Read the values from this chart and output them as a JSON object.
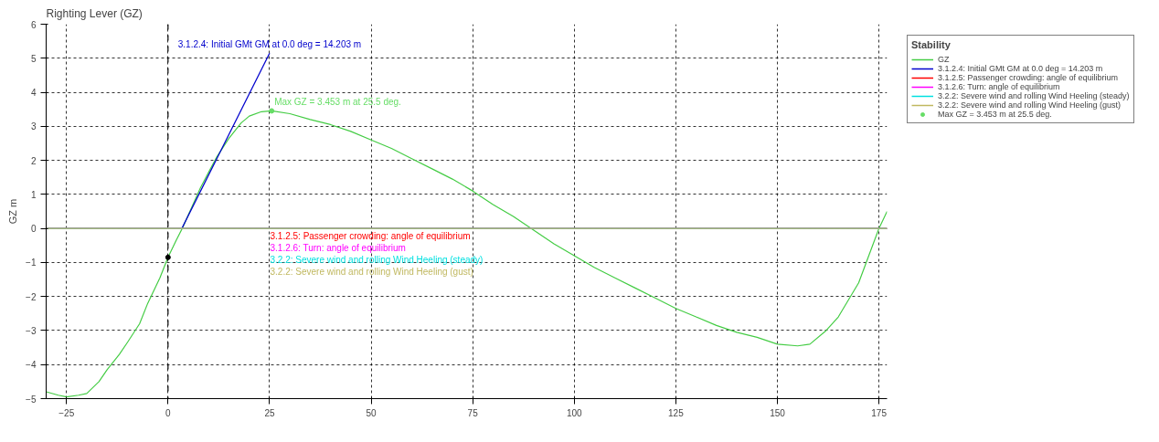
{
  "chart_data": {
    "type": "line",
    "title": "Righting Lever (GZ)",
    "ylabel": "GZ m",
    "legend_title": "Stability",
    "legend": "right",
    "grid": true,
    "xlim": [
      -30,
      177
    ],
    "xticks": [
      -25,
      0,
      25,
      50,
      75,
      100,
      125,
      150,
      175
    ],
    "ylim": [
      -5,
      6
    ],
    "yticks": [
      -5,
      -4,
      -3,
      -2,
      -1,
      0,
      1,
      2,
      3,
      4,
      5,
      6
    ],
    "series": [
      {
        "name": "GZ",
        "color": "#44cc44",
        "x": [
          -30,
          -27,
          -25,
          -22,
          -20,
          -17,
          -15,
          -12,
          -10,
          -7,
          -5,
          -2,
          0,
          2,
          3.5,
          5,
          8,
          10,
          12,
          15,
          18,
          20,
          23,
          25.5,
          30,
          35,
          40,
          45,
          50,
          55,
          60,
          65,
          70,
          75,
          80,
          85,
          90,
          95,
          100,
          105,
          110,
          115,
          120,
          125,
          130,
          135,
          140,
          145,
          150,
          155,
          158,
          162,
          165,
          170,
          175,
          177
        ],
        "values": [
          -4.8,
          -4.9,
          -4.95,
          -4.9,
          -4.85,
          -4.5,
          -4.15,
          -3.7,
          -3.35,
          -2.8,
          -2.2,
          -1.45,
          -0.85,
          -0.35,
          0,
          0.4,
          1.2,
          1.65,
          2.1,
          2.65,
          3.1,
          3.3,
          3.43,
          3.453,
          3.37,
          3.2,
          3.05,
          2.85,
          2.6,
          2.35,
          2.05,
          1.75,
          1.45,
          1.1,
          0.7,
          0.35,
          -0.05,
          -0.45,
          -0.8,
          -1.15,
          -1.45,
          -1.75,
          -2.05,
          -2.35,
          -2.6,
          -2.85,
          -3.05,
          -3.2,
          -3.4,
          -3.45,
          -3.4,
          -3.0,
          -2.6,
          -1.6,
          0.0,
          0.5
        ]
      },
      {
        "name": "3.1.2.4: Initial GMt GM at 0.0 deg = 14.203 m",
        "type": "line",
        "color": "#0000cc",
        "x": [
          3.4,
          25
        ],
        "values": [
          0,
          5.15
        ]
      },
      {
        "name": "Max GZ = 3.453 m at 25.5 deg.",
        "type": "scatter",
        "color": "#66dd66",
        "x": [
          25.5
        ],
        "values": [
          3.453
        ]
      },
      {
        "type": "scatter",
        "color": "#000000",
        "x": [
          0
        ],
        "values": [
          -0.85
        ]
      }
    ],
    "ref_lines": [
      {
        "axis": "x",
        "value": 0,
        "color": "#000000",
        "line_style": "dashed"
      },
      {
        "axis": "y",
        "value": 0,
        "label": "3.1.2.5: Passenger crowding: angle of equilibrium",
        "color": "#ff0000"
      },
      {
        "axis": "y",
        "value": 0,
        "label": "3.1.2.6: Turn: angle of equilibrium",
        "color": "#ff00ff"
      },
      {
        "axis": "y",
        "value": 0,
        "label": "3.2.2: Severe wind and rolling Wind Heeling (steady)",
        "color": "#00e0e0"
      },
      {
        "axis": "y",
        "value": 0,
        "label": "3.2.2: Severe wind and rolling Wind Heeling (gust)",
        "color": "#c0b860"
      }
    ],
    "annotations": [
      {
        "text": "3.1.2.4: Initial GMt GM at 0.0 deg = 14.203 m",
        "x": 25,
        "y": 5.15
      },
      {
        "text": "Max GZ = 3.453 m at 25.5 deg.",
        "x": 25.5,
        "y": 3.453
      }
    ]
  }
}
